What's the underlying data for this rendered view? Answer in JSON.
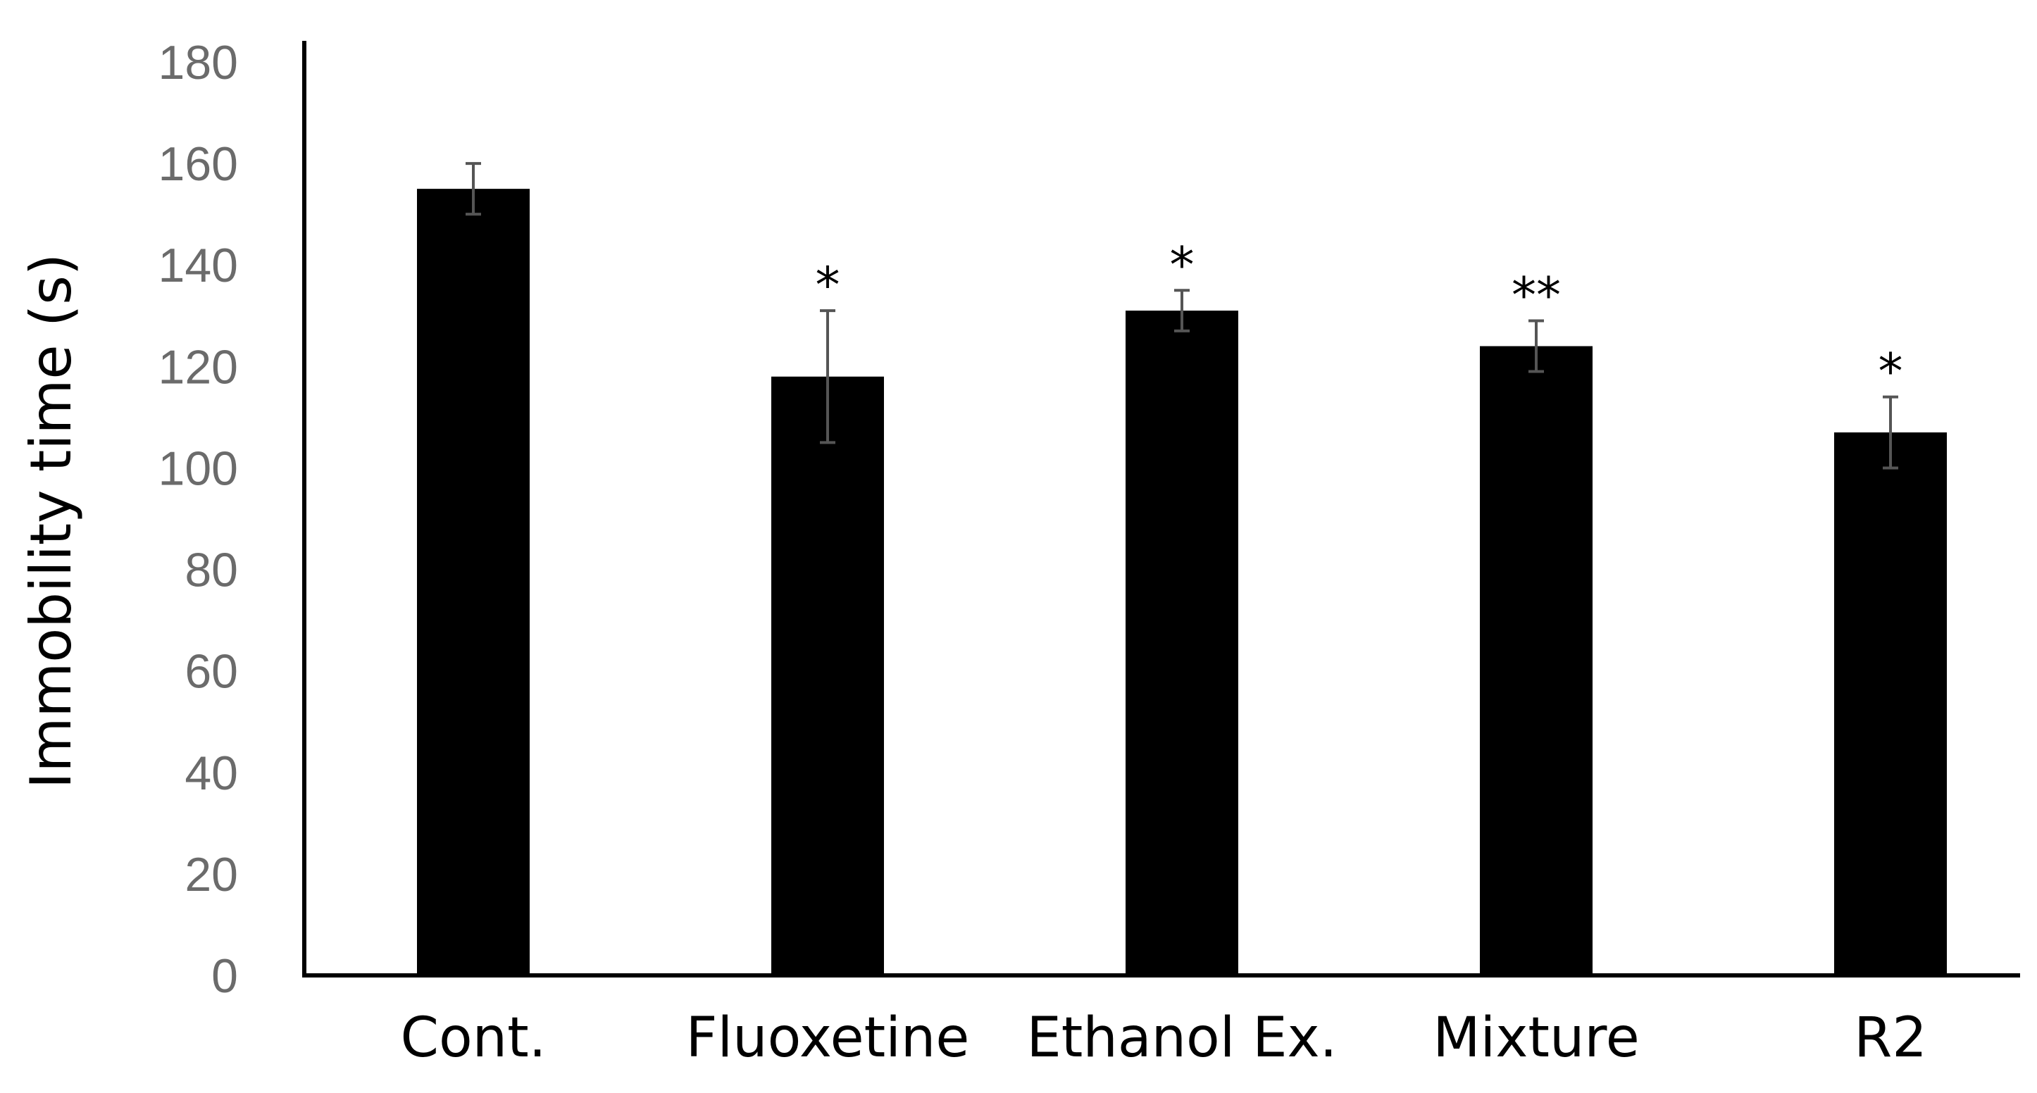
{
  "chart_data": {
    "type": "bar",
    "title": "",
    "xlabel": "",
    "ylabel": "Immobility time (s)",
    "ylim": [
      0,
      180
    ],
    "yticks": [
      0,
      20,
      40,
      60,
      80,
      100,
      120,
      140,
      160,
      180
    ],
    "grid": false,
    "legend": "none",
    "categories": [
      "Cont.",
      "Fluoxetine",
      "Ethanol Ex.",
      "Mixture",
      "R2"
    ],
    "values": [
      155,
      118,
      131,
      124,
      107
    ],
    "errors": [
      5,
      13,
      4,
      5,
      7
    ],
    "significance": [
      "",
      "*",
      "*",
      "**",
      "*"
    ],
    "colors": {
      "bar": "#000000",
      "error_bar": "#555555",
      "axis": "#000000",
      "tick_text": "#6b6b6b"
    }
  }
}
